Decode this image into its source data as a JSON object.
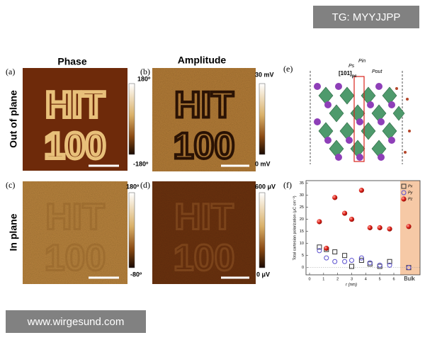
{
  "watermark_top": "TG: MYYJJPP",
  "watermark_bottom": "www.wirgesund.com",
  "column_titles": [
    "Phase",
    "Amplitude"
  ],
  "row_titles": [
    "Out of plane",
    "In plane"
  ],
  "pattern_text": [
    "HIT",
    "100"
  ],
  "panels": {
    "a": {
      "label": "(a)",
      "cbar_top": "180º",
      "cbar_bottom": "-180º"
    },
    "b": {
      "label": "(b)",
      "cbar_top": "30 mV",
      "cbar_bottom": "0 mV"
    },
    "c": {
      "label": "(c)",
      "cbar_top": "180º",
      "cbar_bottom": "-80º"
    },
    "d": {
      "label": "(d)",
      "cbar_top": "600 μV",
      "cbar_bottom": "0 μV"
    },
    "e": {
      "label": "(e)",
      "lattice": "[101]",
      "lattice_sub": "pc",
      "p_s": "Ps",
      "p_in": "Pin",
      "p_out": "Pout"
    },
    "f": {
      "label": "(f)",
      "type": "scatter",
      "y_label": "Total cartesian polarization (μC cm⁻²)",
      "x_label": "r (nm)",
      "bulk_label": "Bulk",
      "x": [
        0.7,
        1.2,
        1.8,
        2.5,
        3.0,
        3.7,
        4.3,
        5.0,
        5.7
      ],
      "xlim": [
        0,
        6
      ],
      "xticks": [
        0,
        1,
        2,
        3,
        4,
        5,
        6
      ],
      "ylim": [
        -3,
        36
      ],
      "yticks": [
        0,
        5,
        10,
        15,
        20,
        25,
        30,
        35
      ],
      "series": [
        {
          "name": "Px",
          "marker": "square",
          "color": "#333333",
          "values": [
            8.5,
            7.5,
            6.5,
            5,
            0.5,
            3,
            1.5,
            0.5,
            2.5
          ],
          "bulk": 0
        },
        {
          "name": "Py",
          "marker": "circle",
          "color": "#5a4fcf",
          "values": [
            7,
            4,
            2.5,
            2.5,
            3,
            4,
            2,
            1,
            1
          ],
          "bulk": 0
        },
        {
          "name": "Pz",
          "marker": "sphere",
          "color": "#d9231c",
          "values": [
            19,
            8,
            29,
            22.5,
            20,
            32,
            16.5,
            16.5,
            16
          ],
          "bulk": 17
        }
      ]
    }
  }
}
